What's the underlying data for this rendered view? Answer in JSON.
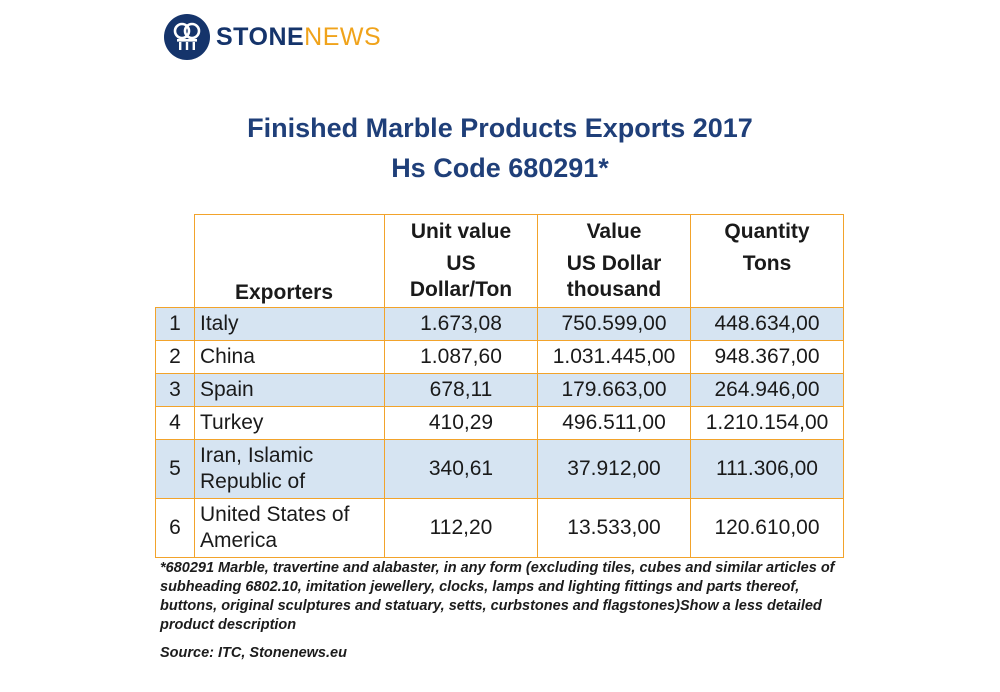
{
  "logo": {
    "word1": "STONE",
    "word2": "NEWS"
  },
  "title_line1": "Finished Marble Products Exports 2017",
  "title_line2": "Hs Code 680291*",
  "table": {
    "headers": {
      "exporters": "Exporters",
      "unit_value": {
        "line1": "Unit value",
        "line2": "US",
        "line3": "Dollar/Ton"
      },
      "value": {
        "line1": "Value",
        "line2": "US Dollar",
        "line3": "thousand"
      },
      "quantity": {
        "line1": "Quantity",
        "line2": "Tons"
      }
    },
    "rows": [
      {
        "rank": "1",
        "exporter": "Italy",
        "unit_value": "1.673,08",
        "value": "750.599,00",
        "quantity": "448.634,00"
      },
      {
        "rank": "2",
        "exporter": "China",
        "unit_value": "1.087,60",
        "value": "1.031.445,00",
        "quantity": "948.367,00"
      },
      {
        "rank": "3",
        "exporter": "Spain",
        "unit_value": "678,11",
        "value": "179.663,00",
        "quantity": "264.946,00"
      },
      {
        "rank": "4",
        "exporter": "Turkey",
        "unit_value": "410,29",
        "value": "496.511,00",
        "quantity": "1.210.154,00"
      },
      {
        "rank": "5",
        "exporter_line1": "Iran, Islamic",
        "exporter_line2": "Republic of",
        "unit_value": "340,61",
        "value": "37.912,00",
        "quantity": "111.306,00"
      },
      {
        "rank": "6",
        "exporter_line1": "United States of",
        "exporter_line2": "America",
        "unit_value": "112,20",
        "value": "13.533,00",
        "quantity": "120.610,00"
      }
    ]
  },
  "footnote": "*680291 Marble, travertine and alabaster, in any form (excluding tiles, cubes and similar articles of subheading 6802.10, imitation jewellery, clocks, lamps and lighting fittings and parts thereof, buttons, original sculptures and statuary, setts, curbstones and flagstones)Show a less detailed product description",
  "source": "Source: ITC, Stonenews.eu",
  "colors": {
    "navy": "#15346b",
    "title_blue": "#1f3f79",
    "orange": "#f0a31b",
    "row_blue": "#d6e4f2",
    "border": "#f2a32b"
  }
}
